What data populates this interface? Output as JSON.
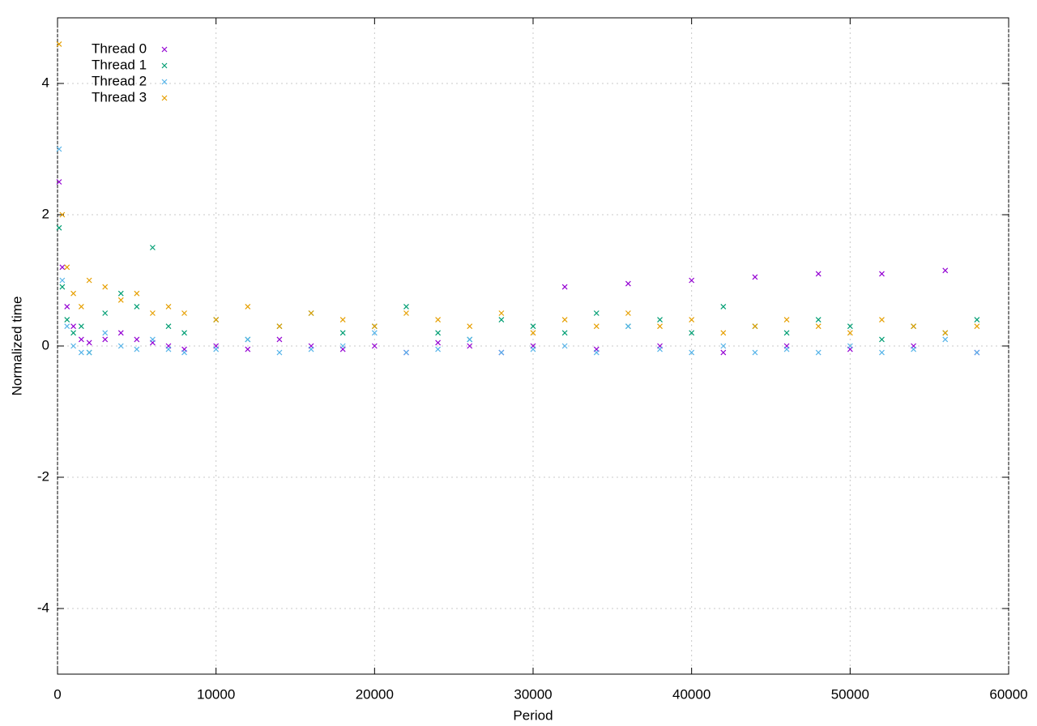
{
  "chart_data": {
    "type": "scatter",
    "x_label": "Period",
    "y_label": "Normalized time",
    "x": [
      100,
      300,
      600,
      1000,
      1500,
      2000,
      3000,
      4000,
      5000,
      6000,
      7000,
      8000,
      10000,
      12000,
      14000,
      16000,
      18000,
      20000,
      22000,
      24000,
      26000,
      28000,
      30000,
      32000,
      34000,
      36000,
      38000,
      40000,
      42000,
      44000,
      46000,
      48000,
      50000,
      52000,
      54000,
      56000,
      58000
    ],
    "series": [
      {
        "name": "Thread 0",
        "color": "#9400d3",
        "values": [
          2.5,
          1.2,
          0.6,
          0.3,
          0.1,
          0.05,
          0.1,
          0.2,
          0.1,
          0.05,
          0.0,
          -0.05,
          0.0,
          -0.05,
          0.1,
          0.0,
          -0.05,
          0.0,
          -0.1,
          0.05,
          0.0,
          -0.1,
          0.0,
          0.9,
          -0.05,
          0.95,
          0.0,
          1.0,
          -0.1,
          1.05,
          0.0,
          1.1,
          -0.05,
          1.1,
          0.0,
          1.15,
          -0.1
        ]
      },
      {
        "name": "Thread 1",
        "color": "#009e73",
        "values": [
          1.8,
          0.9,
          0.4,
          0.2,
          0.3,
          -0.1,
          0.5,
          0.8,
          0.6,
          1.5,
          0.3,
          0.2,
          0.4,
          0.1,
          0.3,
          0.5,
          0.2,
          0.3,
          0.6,
          0.2,
          0.1,
          0.4,
          0.3,
          0.2,
          0.5,
          0.3,
          0.4,
          0.2,
          0.6,
          0.3,
          0.2,
          0.4,
          0.3,
          0.1,
          0.3,
          0.2,
          0.4
        ]
      },
      {
        "name": "Thread 2",
        "color": "#56b4e9",
        "values": [
          3.0,
          1.0,
          0.3,
          0.0,
          -0.1,
          -0.1,
          0.2,
          0.0,
          -0.05,
          0.1,
          -0.05,
          -0.1,
          -0.05,
          0.1,
          -0.1,
          -0.05,
          0.0,
          0.2,
          -0.1,
          -0.05,
          0.1,
          -0.1,
          -0.05,
          0.0,
          -0.1,
          0.3,
          -0.05,
          -0.1,
          0.0,
          -0.1,
          -0.05,
          -0.1,
          0.0,
          -0.1,
          -0.05,
          0.1,
          -0.1
        ]
      },
      {
        "name": "Thread 3",
        "color": "#e69f00",
        "values": [
          4.6,
          2.0,
          1.2,
          0.8,
          0.6,
          1.0,
          0.9,
          0.7,
          0.8,
          0.5,
          0.6,
          0.5,
          0.4,
          0.6,
          0.3,
          0.5,
          0.4,
          0.3,
          0.5,
          0.4,
          0.3,
          0.5,
          0.2,
          0.4,
          0.3,
          0.5,
          0.3,
          0.4,
          0.2,
          0.3,
          0.4,
          0.3,
          0.2,
          0.4,
          0.3,
          0.2,
          0.3
        ]
      }
    ],
    "xlim": [
      0,
      60000
    ],
    "xticks": [
      0,
      10000,
      20000,
      30000,
      40000,
      50000,
      60000
    ],
    "ylim": [
      -5,
      5
    ],
    "yticks": [
      -4,
      -2,
      0,
      2,
      4
    ],
    "grid": true,
    "legend": "top-left"
  }
}
